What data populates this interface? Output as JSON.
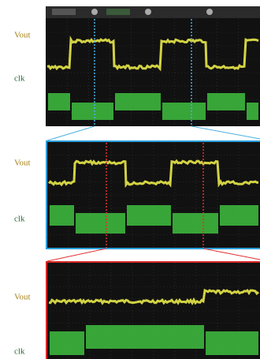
{
  "panels": [
    {
      "vout_label": "Vout",
      "clk_label": "clk"
    },
    {
      "vout_label": "Vout",
      "clk_label": "clk"
    },
    {
      "vout_label": "Vout",
      "clk_label": "clk"
    }
  ]
}
